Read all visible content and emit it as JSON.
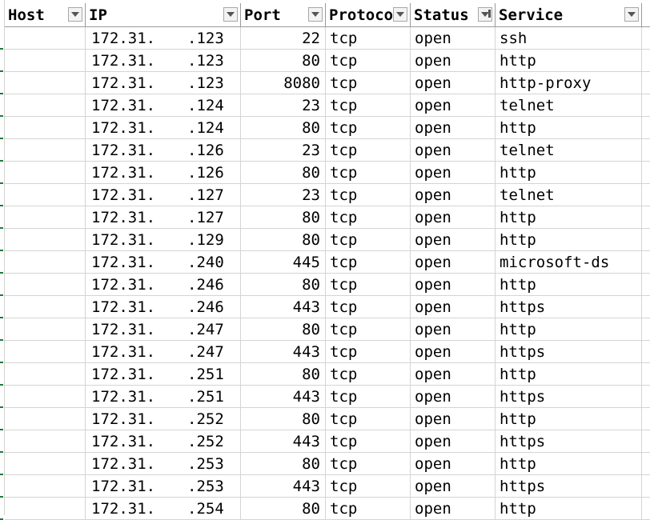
{
  "headers": {
    "host": "Host",
    "ip": "IP",
    "port": "Port",
    "protocol": "Protoco",
    "status": "Status",
    "service": "Service"
  },
  "rows": [
    {
      "ip_prefix": "172.31.",
      "ip_suffix": ".123",
      "port": "22",
      "protocol": "tcp",
      "status": "open",
      "service": "ssh"
    },
    {
      "ip_prefix": "172.31.",
      "ip_suffix": ".123",
      "port": "80",
      "protocol": "tcp",
      "status": "open",
      "service": "http"
    },
    {
      "ip_prefix": "172.31.",
      "ip_suffix": ".123",
      "port": "8080",
      "protocol": "tcp",
      "status": "open",
      "service": "http-proxy"
    },
    {
      "ip_prefix": "172.31.",
      "ip_suffix": ".124",
      "port": "23",
      "protocol": "tcp",
      "status": "open",
      "service": "telnet"
    },
    {
      "ip_prefix": "172.31.",
      "ip_suffix": ".124",
      "port": "80",
      "protocol": "tcp",
      "status": "open",
      "service": "http"
    },
    {
      "ip_prefix": "172.31.",
      "ip_suffix": ".126",
      "port": "23",
      "protocol": "tcp",
      "status": "open",
      "service": "telnet"
    },
    {
      "ip_prefix": "172.31.",
      "ip_suffix": ".126",
      "port": "80",
      "protocol": "tcp",
      "status": "open",
      "service": "http"
    },
    {
      "ip_prefix": "172.31.",
      "ip_suffix": ".127",
      "port": "23",
      "protocol": "tcp",
      "status": "open",
      "service": "telnet"
    },
    {
      "ip_prefix": "172.31.",
      "ip_suffix": ".127",
      "port": "80",
      "protocol": "tcp",
      "status": "open",
      "service": "http"
    },
    {
      "ip_prefix": "172.31.",
      "ip_suffix": ".129",
      "port": "80",
      "protocol": "tcp",
      "status": "open",
      "service": "http"
    },
    {
      "ip_prefix": "172.31.",
      "ip_suffix": ".240",
      "port": "445",
      "protocol": "tcp",
      "status": "open",
      "service": "microsoft-ds"
    },
    {
      "ip_prefix": "172.31.",
      "ip_suffix": ".246",
      "port": "80",
      "protocol": "tcp",
      "status": "open",
      "service": "http"
    },
    {
      "ip_prefix": "172.31.",
      "ip_suffix": ".246",
      "port": "443",
      "protocol": "tcp",
      "status": "open",
      "service": "https"
    },
    {
      "ip_prefix": "172.31.",
      "ip_suffix": ".247",
      "port": "80",
      "protocol": "tcp",
      "status": "open",
      "service": "http"
    },
    {
      "ip_prefix": "172.31.",
      "ip_suffix": ".247",
      "port": "443",
      "protocol": "tcp",
      "status": "open",
      "service": "https"
    },
    {
      "ip_prefix": "172.31.",
      "ip_suffix": ".251",
      "port": "80",
      "protocol": "tcp",
      "status": "open",
      "service": "http"
    },
    {
      "ip_prefix": "172.31.",
      "ip_suffix": ".251",
      "port": "443",
      "protocol": "tcp",
      "status": "open",
      "service": "https"
    },
    {
      "ip_prefix": "172.31.",
      "ip_suffix": ".252",
      "port": "80",
      "protocol": "tcp",
      "status": "open",
      "service": "http"
    },
    {
      "ip_prefix": "172.31.",
      "ip_suffix": ".252",
      "port": "443",
      "protocol": "tcp",
      "status": "open",
      "service": "https"
    },
    {
      "ip_prefix": "172.31.",
      "ip_suffix": ".253",
      "port": "80",
      "protocol": "tcp",
      "status": "open",
      "service": "http"
    },
    {
      "ip_prefix": "172.31.",
      "ip_suffix": ".253",
      "port": "443",
      "protocol": "tcp",
      "status": "open",
      "service": "https"
    },
    {
      "ip_prefix": "172.31.",
      "ip_suffix": ".254",
      "port": "80",
      "protocol": "tcp",
      "status": "open",
      "service": "http"
    }
  ],
  "colors": {
    "frozen_marker": "#1e7a3c",
    "grid": "#d4d4d4"
  }
}
